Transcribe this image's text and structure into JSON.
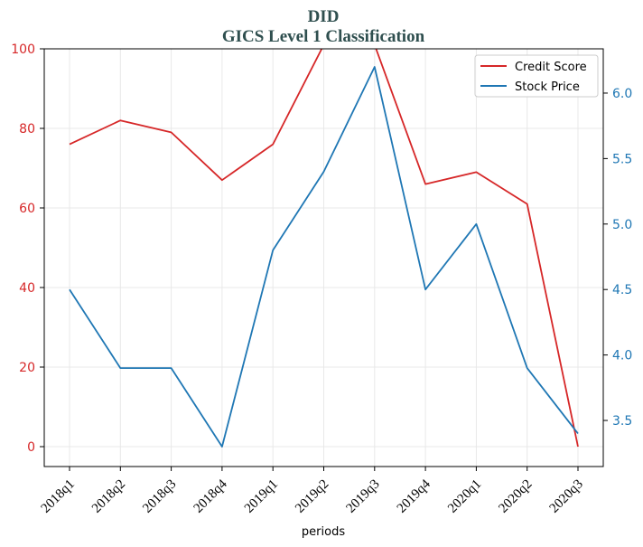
{
  "chart_data": {
    "type": "line",
    "title_line1": "DID",
    "title_line2": "GICS Level 1 Classification",
    "xlabel": "periods",
    "categories": [
      "2018q1",
      "2018q2",
      "2018q3",
      "2018q4",
      "2019q1",
      "2019q2",
      "2019q3",
      "2019q4",
      "2020q1",
      "2020q2",
      "2020q3"
    ],
    "series": [
      {
        "name": "Credit Score",
        "axis": "left",
        "color": "#d62728",
        "values": [
          76,
          82,
          79,
          67,
          76,
          101,
          101,
          66,
          69,
          61,
          0
        ]
      },
      {
        "name": "Stock Price",
        "axis": "right",
        "color": "#1f77b4",
        "values": [
          4.5,
          3.9,
          3.9,
          3.3,
          4.8,
          5.4,
          6.2,
          4.5,
          5.0,
          3.9,
          3.4
        ]
      }
    ],
    "left_axis": {
      "ylim": [
        0,
        100
      ],
      "ticks": [
        "0",
        "20",
        "40",
        "60",
        "80",
        "100"
      ],
      "color": "#d62728"
    },
    "right_axis": {
      "ylim": [
        3.3,
        6.2
      ],
      "ticks": [
        "3.5",
        "4.0",
        "4.5",
        "5.0",
        "5.5",
        "6.0"
      ],
      "color": "#1f77b4"
    },
    "grid": true,
    "legend_position": "top-right"
  }
}
